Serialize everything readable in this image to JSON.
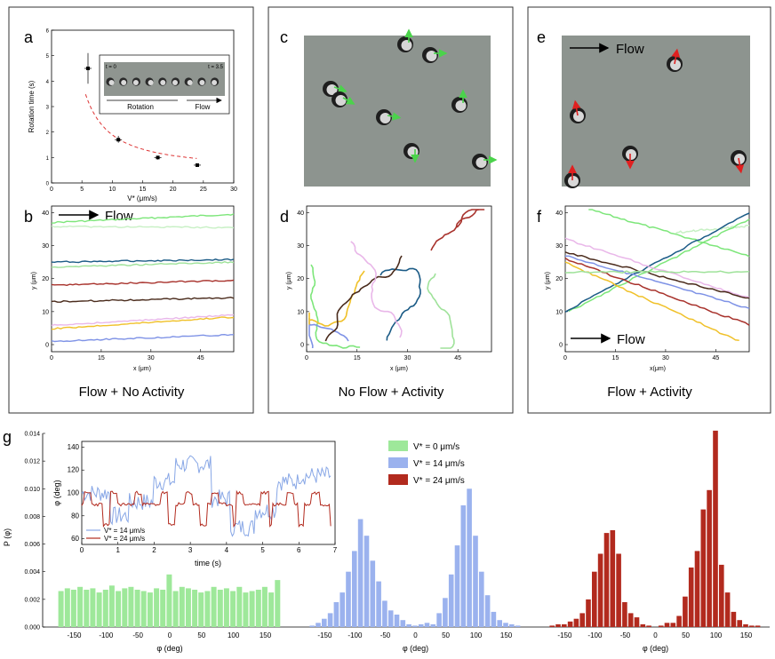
{
  "panels": {
    "a": {
      "letter": "a",
      "xlabel": "V* (μm/s)",
      "ylabel": "Rotation time (s)",
      "xticks": [
        "0",
        "5",
        "10",
        "15",
        "20",
        "25",
        "30"
      ],
      "yticks": [
        "0",
        "1",
        "2",
        "3",
        "4",
        "5",
        "6"
      ],
      "inset": {
        "t0": "t = 0",
        "t1": "t = 3.5",
        "rotation": "Rotation",
        "flow": "Flow"
      }
    },
    "b": {
      "letter": "b",
      "flow_label": "Flow",
      "xlabel": "x (μm)",
      "ylabel": "y (μm)",
      "xticks": [
        "0",
        "15",
        "30",
        "45"
      ],
      "yticks": [
        "0",
        "10",
        "20",
        "30",
        "40"
      ],
      "caption": "Flow + No Activity"
    },
    "c": {
      "letter": "c"
    },
    "d": {
      "letter": "d",
      "xlabel": "x (μm)",
      "ylabel": "y (μm)",
      "xticks": [
        "0",
        "15",
        "30",
        "45"
      ],
      "yticks": [
        "0",
        "10",
        "20",
        "30",
        "40"
      ],
      "caption": "No Flow + Activity"
    },
    "e": {
      "letter": "e",
      "flow_label": "Flow"
    },
    "f": {
      "letter": "f",
      "flow_label": "Flow",
      "xlabel": "x(μm)",
      "ylabel": "y (μm)",
      "xticks": [
        "0",
        "15",
        "30",
        "45"
      ],
      "yticks": [
        "0",
        "10",
        "20",
        "30",
        "40"
      ],
      "caption": "Flow + Activity"
    },
    "g": {
      "letter": "g",
      "ylabel": "P (φ)",
      "xlabel": "φ (deg)",
      "yticks": [
        "0.000",
        "0.002",
        "0.004",
        "0.006",
        "0.008",
        "0.010",
        "0.012",
        "0.014"
      ],
      "xticks": [
        "-150",
        "-100",
        "-50",
        "0",
        "50",
        "100",
        "150"
      ],
      "inset": {
        "xlabel": "time (s)",
        "ylabel": "φ (deg)",
        "xticks": [
          "0",
          "1",
          "2",
          "3",
          "4",
          "5",
          "6",
          "7"
        ],
        "yticks": [
          "60",
          "80",
          "100",
          "120",
          "140"
        ],
        "legend": [
          "V* = 14 μm/s",
          "V* = 24 μm/s"
        ]
      }
    }
  },
  "colors": {
    "green": "#9ee89a",
    "blue": "#9bb2ee",
    "red": "#b22a1e",
    "redline": "#d9382a"
  },
  "chart_data": [
    {
      "type": "scatter",
      "panel": "a",
      "x": [
        6,
        11,
        17.5,
        24
      ],
      "y": [
        4.5,
        1.7,
        1.0,
        0.7
      ],
      "xlim": [
        0,
        30
      ],
      "ylim": [
        0,
        6
      ],
      "xlabel": "V* (μm/s)",
      "ylabel": "Rotation time (s)"
    },
    {
      "type": "bar",
      "panel": "g",
      "title": "",
      "legend": [
        "V* = 0 μm/s",
        "V* = 14 μm/s",
        "V* = 24 μm/s"
      ],
      "ylim": [
        0,
        0.014
      ],
      "xlim": [
        -180,
        180
      ],
      "series": [
        {
          "name": "V* = 0 μm/s",
          "x": [
            -170,
            -160,
            -150,
            -140,
            -130,
            -120,
            -110,
            -100,
            -90,
            -80,
            -70,
            -60,
            -50,
            -40,
            -30,
            -20,
            -10,
            0,
            10,
            20,
            30,
            40,
            50,
            60,
            70,
            80,
            90,
            100,
            110,
            120,
            130,
            140,
            150,
            160,
            170
          ],
          "values": [
            0.0026,
            0.0028,
            0.0027,
            0.0029,
            0.0027,
            0.0028,
            0.0025,
            0.0027,
            0.003,
            0.0026,
            0.0028,
            0.0029,
            0.0027,
            0.0026,
            0.0025,
            0.0028,
            0.0027,
            0.0038,
            0.0026,
            0.0029,
            0.0028,
            0.0027,
            0.0025,
            0.0026,
            0.0029,
            0.0027,
            0.0028,
            0.0026,
            0.0029,
            0.0025,
            0.0026,
            0.0027,
            0.0029,
            0.0025,
            0.0034
          ]
        },
        {
          "name": "V* = 14 μm/s",
          "x": [
            -170,
            -160,
            -150,
            -140,
            -130,
            -120,
            -110,
            -100,
            -90,
            -80,
            -70,
            -60,
            -50,
            -40,
            -30,
            -20,
            -10,
            0,
            10,
            20,
            30,
            40,
            50,
            60,
            70,
            80,
            90,
            100,
            110,
            120,
            130,
            140,
            150,
            160,
            170
          ],
          "values": [
            0.0001,
            0.0003,
            0.0006,
            0.001,
            0.0018,
            0.0025,
            0.004,
            0.0055,
            0.0078,
            0.0066,
            0.0048,
            0.0033,
            0.0019,
            0.0012,
            0.0009,
            0.0005,
            0.0002,
            0.0001,
            0.0002,
            0.0003,
            0.0002,
            0.001,
            0.0021,
            0.0038,
            0.0059,
            0.0088,
            0.01,
            0.0066,
            0.004,
            0.0023,
            0.0011,
            0.0005,
            0.0003,
            0.0002,
            0.0001
          ]
        },
        {
          "name": "V* = 24 μm/s",
          "x": [
            -170,
            -160,
            -150,
            -140,
            -130,
            -120,
            -110,
            -100,
            -90,
            -80,
            -70,
            -60,
            -50,
            -40,
            -30,
            -20,
            -10,
            0,
            10,
            20,
            30,
            40,
            50,
            60,
            70,
            80,
            90,
            100,
            110,
            120,
            130,
            140,
            150,
            160,
            170
          ],
          "values": [
            0.0001,
            0.0002,
            0.0002,
            0.0004,
            0.0006,
            0.001,
            0.002,
            0.004,
            0.0053,
            0.0068,
            0.007,
            0.0053,
            0.0018,
            0.001,
            0.0007,
            0.0002,
            0.0001,
            0.0,
            0.0001,
            0.0003,
            0.0003,
            0.0008,
            0.0022,
            0.0043,
            0.0055,
            0.0085,
            0.0099,
            0.0142,
            0.0045,
            0.0025,
            0.0011,
            0.0005,
            0.0002,
            0.0001,
            0.0001
          ]
        }
      ]
    }
  ]
}
